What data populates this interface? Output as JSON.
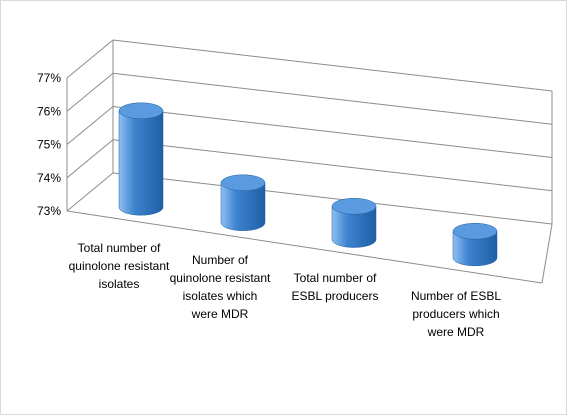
{
  "chart_data": {
    "type": "bar",
    "style": "3d-cylinder",
    "categories": [
      "Total number of quinolone resistant isolates",
      "Number of quinolone resistant isolates which were MDR",
      "Total number of ESBL producers",
      "Number of ESBL producers which were MDR"
    ],
    "category_lines": [
      [
        "Total number of",
        "quinolone resistant",
        "isolates"
      ],
      [
        "Number of",
        "quinolone resistant",
        "isolates which",
        "were MDR"
      ],
      [
        "Total number of",
        "ESBL producers"
      ],
      [
        "Number of ESBL",
        "producers which",
        "were MDR"
      ]
    ],
    "values": [
      75.9,
      74.2,
      74.0,
      73.8
    ],
    "value_format": "percent",
    "ylim": [
      73,
      77
    ],
    "yticks": [
      "73%",
      "74%",
      "75%",
      "76%",
      "77%"
    ],
    "grid": true,
    "legend": "none",
    "title": "",
    "xlabel": "",
    "ylabel": "",
    "colors": {
      "bar_body": "#3e83cf",
      "bar_dark": "#1f5fa5",
      "bar_light": "#8ec0f0",
      "bar_top": "#5a9be0",
      "grid": "#8c8c8c",
      "frame": "#d9d9d9"
    }
  }
}
